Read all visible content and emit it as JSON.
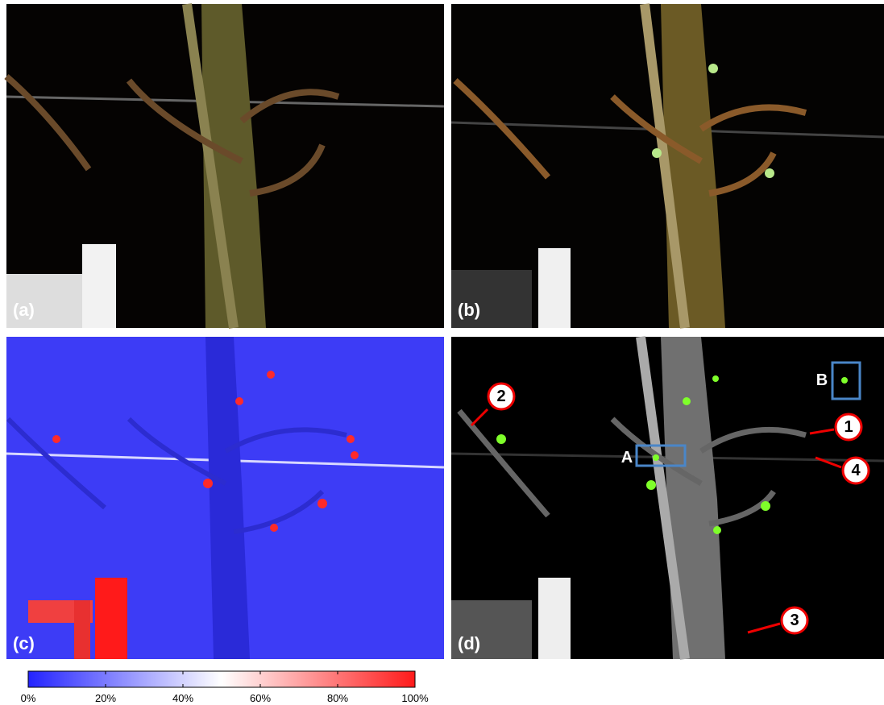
{
  "panels": [
    {
      "label": "(a)"
    },
    {
      "label": "(b)"
    },
    {
      "label": "(c)"
    },
    {
      "label": "(d)"
    }
  ],
  "callouts": [
    "1",
    "2",
    "3",
    "4"
  ],
  "boxes": [
    "A",
    "B"
  ],
  "colorbar": {
    "range": [
      0,
      100
    ],
    "ticks": [
      {
        "value": 0,
        "label": "0%"
      },
      {
        "value": 20,
        "label": "20%"
      },
      {
        "value": 40,
        "label": "40%"
      },
      {
        "value": 60,
        "label": "60%"
      },
      {
        "value": 80,
        "label": "80%"
      },
      {
        "value": 100,
        "label": "100%"
      }
    ]
  }
}
